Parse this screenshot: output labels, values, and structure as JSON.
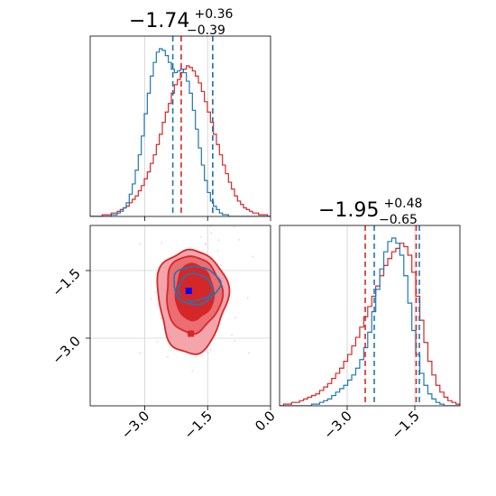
{
  "chart_data": {
    "type": "corner",
    "params": [
      {
        "title": {
          "main": "−1.74",
          "sup": "+0.36",
          "sub": "−0.39"
        },
        "range": [
          -4.3,
          0.0
        ],
        "ticks": [
          {
            "value": -3.0,
            "label": "−3.0"
          },
          {
            "value": -1.5,
            "label": "−1.5"
          },
          {
            "value": 0.0,
            "label": "0.0"
          }
        ]
      },
      {
        "title": {
          "main": "−1.95",
          "sup": "+0.48",
          "sub": "−0.65"
        },
        "range": [
          -4.5,
          -0.5
        ],
        "ticks": [
          {
            "value": -3.0,
            "label": "−3.0"
          },
          {
            "value": -1.5,
            "label": "−1.5"
          }
        ]
      }
    ],
    "series": [
      {
        "color": "#d62728",
        "quantiles_p1": [
          -2.13,
          -1.74,
          -1.38
        ],
        "quantiles_p2": [
          -2.6,
          -1.95,
          -1.47
        ],
        "hist_p1": [
          0,
          0,
          0,
          0,
          1,
          1,
          1,
          2,
          2,
          3,
          4,
          5,
          6,
          8,
          10,
          12,
          15,
          18,
          22,
          26,
          31,
          36,
          42,
          48,
          55,
          61,
          66,
          72,
          77,
          80,
          84,
          86,
          88,
          87,
          85,
          82,
          78,
          73,
          67,
          61,
          55,
          48,
          42,
          36,
          30,
          25,
          20,
          16,
          12,
          9,
          7,
          5,
          4,
          3,
          2,
          2,
          1,
          1,
          1,
          0
        ],
        "hist_p2": [
          0,
          1,
          1,
          2,
          2,
          3,
          4,
          5,
          6,
          7,
          9,
          11,
          13,
          16,
          19,
          22,
          26,
          30,
          35,
          40,
          46,
          52,
          58,
          64,
          70,
          76,
          82,
          86,
          90,
          92,
          95,
          93,
          88,
          78,
          64,
          50,
          37,
          26,
          18,
          12,
          8,
          5,
          3,
          2,
          1
        ]
      },
      {
        "color": "#1f77b4",
        "quantiles_p1": [
          -2.33,
          -1.66,
          -1.38
        ],
        "quantiles_p2": [
          -2.4,
          -1.65,
          -1.4
        ],
        "hist_p1": [
          0,
          0,
          0,
          0,
          0,
          0,
          0,
          1,
          1,
          2,
          3,
          5,
          8,
          13,
          19,
          27,
          36,
          47,
          60,
          72,
          82,
          90,
          96,
          98,
          97,
          94,
          90,
          86,
          84,
          85,
          86,
          84,
          79,
          72,
          62,
          51,
          40,
          30,
          21,
          14,
          9,
          6,
          4,
          2,
          1,
          1,
          0,
          0,
          0,
          0,
          0,
          0,
          0,
          0,
          0,
          0,
          0,
          0,
          0,
          0
        ],
        "hist_p2": [
          0,
          0,
          0,
          0,
          0,
          0,
          0,
          0,
          1,
          1,
          2,
          3,
          4,
          6,
          8,
          10,
          12,
          15,
          18,
          22,
          27,
          34,
          43,
          55,
          68,
          80,
          90,
          96,
          98,
          95,
          88,
          76,
          60,
          44,
          30,
          19,
          12,
          7,
          4,
          2,
          1,
          0,
          0,
          0,
          0
        ]
      }
    ],
    "markers": [
      {
        "x": -2.05,
        "y": -2.08,
        "color": "#d62728"
      },
      {
        "x": -1.6,
        "y": -1.8,
        "color": "#d62728"
      },
      {
        "x": -1.9,
        "y": -2.9,
        "color": "#d62728"
      },
      {
        "x": -1.95,
        "y": -1.95,
        "color": "#0000ff"
      }
    ],
    "grid": true,
    "colors": {
      "red": "#d62728",
      "blue": "#1f77b4",
      "marker_blue": "#0000ff"
    }
  }
}
